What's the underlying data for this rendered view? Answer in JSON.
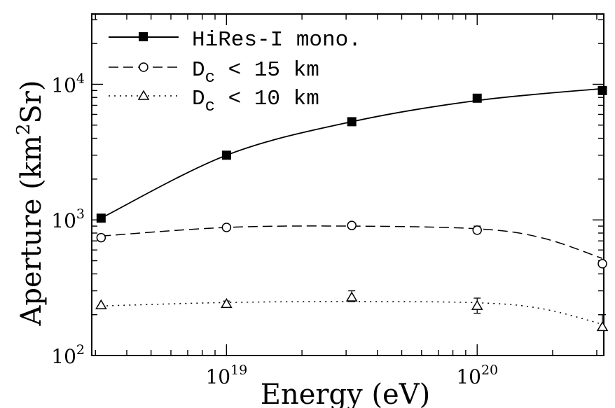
{
  "chart_data": {
    "type": "scatter",
    "title": "",
    "xlabel": "Energy (eV)",
    "ylabel_main": "Aperture (km",
    "ylabel_sup": "2",
    "ylabel_tail": "Sr)",
    "xscale": "log",
    "yscale": "log",
    "xlim": [
      2.9e+18,
      3.2e+20
    ],
    "ylim": [
      100,
      33000
    ],
    "x_ticks": [
      {
        "value": 1e+19,
        "base": "10",
        "exp": "19"
      },
      {
        "value": 1e+20,
        "base": "10",
        "exp": "20"
      }
    ],
    "y_ticks": [
      {
        "value": 100,
        "base": "10",
        "exp": "2"
      },
      {
        "value": 1000,
        "base": "10",
        "exp": "3"
      },
      {
        "value": 10000,
        "base": "10",
        "exp": "4"
      }
    ],
    "legend_position": "top-left",
    "series": [
      {
        "name": "HiRes-I mono.",
        "marker": "filled-square",
        "line": "solid",
        "points": [
          {
            "x": 3.16e+18,
            "y": 1030
          },
          {
            "x": 1e+19,
            "y": 3000
          },
          {
            "x": 3.16e+19,
            "y": 5300
          },
          {
            "x": 1e+20,
            "y": 7900
          },
          {
            "x": 3.16e+20,
            "y": 9000
          }
        ],
        "curve": [
          [
            3.16e+18,
            1030
          ],
          [
            1e+19,
            3000
          ],
          [
            3.16e+19,
            5300
          ],
          [
            1e+20,
            7600
          ],
          [
            3.16e+20,
            9300
          ]
        ]
      },
      {
        "name_main": "D",
        "name_sub": "c",
        "name_tail": " < 15 km",
        "marker": "open-circle",
        "line": "dashed",
        "points": [
          {
            "x": 3.16e+18,
            "y": 740
          },
          {
            "x": 1e+19,
            "y": 880
          },
          {
            "x": 3.16e+19,
            "y": 910
          },
          {
            "x": 1e+20,
            "y": 840,
            "err": [
              800,
              900
            ]
          },
          {
            "x": 3.16e+20,
            "y": 475,
            "err": [
              455,
              500
            ]
          }
        ],
        "curve": [
          [
            3.16e+18,
            760
          ],
          [
            1e+19,
            880
          ],
          [
            3.16e+19,
            900
          ],
          [
            1e+20,
            860
          ],
          [
            1.8e+20,
            740
          ],
          [
            3.16e+20,
            520
          ]
        ]
      },
      {
        "name_main": "D",
        "name_sub": "c",
        "name_tail": " < 10 km",
        "marker": "open-triangle",
        "line": "dotted",
        "points": [
          {
            "x": 3.16e+18,
            "y": 235
          },
          {
            "x": 1e+19,
            "y": 240,
            "err": [
              230,
              252
            ]
          },
          {
            "x": 3.16e+19,
            "y": 268,
            "err": [
              250,
              300
            ]
          },
          {
            "x": 1e+20,
            "y": 232,
            "err": [
              205,
              265
            ]
          },
          {
            "x": 3.16e+20,
            "y": 162,
            "err": [
              155,
              200
            ]
          }
        ],
        "curve": [
          [
            3.16e+18,
            232
          ],
          [
            1e+19,
            246
          ],
          [
            3.16e+19,
            250
          ],
          [
            1e+20,
            245
          ],
          [
            1.8e+20,
            222
          ],
          [
            3.16e+20,
            170
          ]
        ]
      }
    ]
  }
}
